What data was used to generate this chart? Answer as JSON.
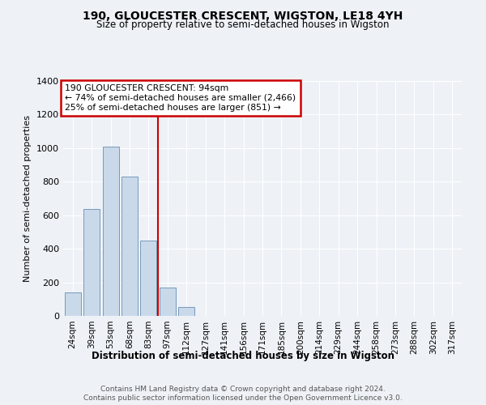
{
  "title": "190, GLOUCESTER CRESCENT, WIGSTON, LE18 4YH",
  "subtitle": "Size of property relative to semi-detached houses in Wigston",
  "xlabel": "Distribution of semi-detached houses by size in Wigston",
  "ylabel": "Number of semi-detached properties",
  "bar_labels": [
    "24sqm",
    "39sqm",
    "53sqm",
    "68sqm",
    "83sqm",
    "97sqm",
    "112sqm",
    "127sqm",
    "141sqm",
    "156sqm",
    "171sqm",
    "185sqm",
    "200sqm",
    "214sqm",
    "229sqm",
    "244sqm",
    "258sqm",
    "273sqm",
    "288sqm",
    "302sqm",
    "317sqm"
  ],
  "bar_values": [
    140,
    635,
    1010,
    830,
    450,
    170,
    55,
    0,
    0,
    0,
    0,
    0,
    0,
    0,
    0,
    0,
    0,
    0,
    0,
    0,
    0
  ],
  "vline_index": 4.5,
  "bar_color": "#c9d9e9",
  "bar_edge_color": "#7799bb",
  "vline_color": "#cc0000",
  "annotation_box_color": "#ffffff",
  "annotation_border_color": "#cc0000",
  "annotation_text_line1": "190 GLOUCESTER CRESCENT: 94sqm",
  "annotation_text_line2": "← 74% of semi-detached houses are smaller (2,466)",
  "annotation_text_line3": "25% of semi-detached houses are larger (851) →",
  "ylim": [
    0,
    1400
  ],
  "yticks": [
    0,
    200,
    400,
    600,
    800,
    1000,
    1200,
    1400
  ],
  "footer_line1": "Contains HM Land Registry data © Crown copyright and database right 2024.",
  "footer_line2": "Contains public sector information licensed under the Open Government Licence v3.0.",
  "background_color": "#eef2f7",
  "plot_bg_color": "#eef2f7",
  "grid_color": "#ffffff"
}
